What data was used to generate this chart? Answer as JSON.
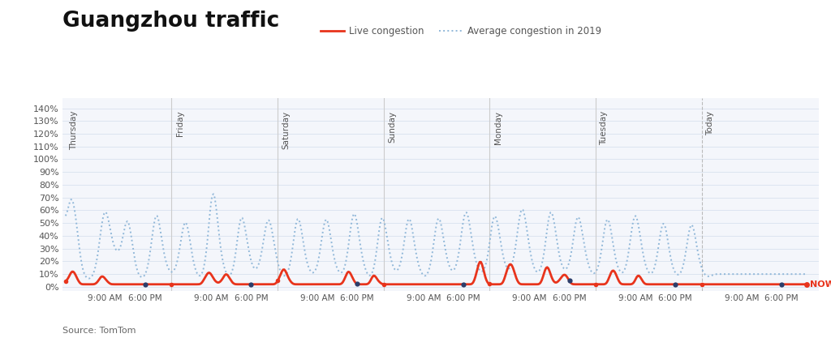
{
  "title": "Guangzhou traffic",
  "legend_live": "Live congestion",
  "legend_avg": "Average congestion in 2019",
  "source": "Source: TomTom",
  "now_label": "NOW",
  "days": [
    "Thursday",
    "Friday",
    "Saturday",
    "Sunday",
    "Monday",
    "Tuesday",
    "Today"
  ],
  "yticks": [
    0,
    10,
    20,
    30,
    40,
    50,
    60,
    70,
    80,
    90,
    100,
    110,
    120,
    130,
    140
  ],
  "ylim": [
    -3,
    148
  ],
  "bg_color": "#ffffff",
  "plot_bg_color": "#f4f6fb",
  "grid_color": "#dce4f0",
  "live_color": "#e8341c",
  "avg_color": "#91b8d9",
  "day_label_color": "#555555",
  "title_color": "#111111",
  "n_points_per_day": 96,
  "n_days": 7,
  "avg_data": [
    53,
    57,
    62,
    68,
    72,
    70,
    65,
    58,
    48,
    38,
    28,
    20,
    14,
    10,
    8,
    7,
    6,
    6,
    7,
    8,
    10,
    14,
    18,
    25,
    34,
    43,
    52,
    58,
    62,
    60,
    56,
    50,
    44,
    38,
    33,
    30,
    28,
    27,
    28,
    30,
    34,
    40,
    47,
    52,
    55,
    52,
    46,
    38,
    30,
    22,
    16,
    12,
    9,
    8,
    7,
    7,
    8,
    10,
    13,
    18,
    25,
    34,
    43,
    52,
    58,
    60,
    55,
    48,
    40,
    32,
    26,
    21,
    17,
    14,
    12,
    11,
    11,
    12,
    14,
    17,
    22,
    28,
    36,
    44,
    50,
    54,
    52,
    47,
    40,
    32,
    25,
    19,
    14,
    11,
    9,
    8,
    8,
    9,
    12,
    18,
    25,
    35,
    50,
    65,
    75,
    78,
    74,
    65,
    53,
    42,
    32,
    24,
    18,
    14,
    11,
    9,
    8,
    8,
    10,
    13,
    18,
    26,
    35,
    46,
    54,
    58,
    56,
    51,
    44,
    37,
    30,
    24,
    19,
    16,
    14,
    13,
    14,
    16,
    19,
    24,
    30,
    38,
    46,
    52,
    55,
    54,
    50,
    43,
    36,
    29,
    23,
    18,
    14,
    11,
    9,
    8,
    8,
    9,
    11,
    14,
    19,
    26,
    35,
    45,
    53,
    57,
    55,
    50,
    43,
    35,
    28,
    22,
    17,
    14,
    12,
    11,
    10,
    11,
    13,
    16,
    21,
    28,
    36,
    45,
    52,
    56,
    55,
    50,
    43,
    35,
    28,
    22,
    17,
    14,
    12,
    11,
    10,
    11,
    13,
    17,
    22,
    30,
    40,
    50,
    57,
    61,
    59,
    53,
    45,
    37,
    29,
    23,
    18,
    14,
    11,
    9,
    8,
    8,
    10,
    13,
    18,
    26,
    36,
    46,
    54,
    58,
    56,
    50,
    43,
    36,
    29,
    23,
    18,
    15,
    13,
    12,
    12,
    14,
    17,
    22,
    28,
    37,
    46,
    53,
    57,
    55,
    49,
    42,
    34,
    27,
    21,
    17,
    13,
    11,
    9,
    8,
    8,
    9,
    11,
    15,
    20,
    27,
    36,
    46,
    53,
    57,
    56,
    50,
    43,
    36,
    29,
    23,
    18,
    15,
    13,
    12,
    12,
    14,
    17,
    22,
    28,
    37,
    47,
    55,
    60,
    62,
    58,
    51,
    44,
    36,
    29,
    23,
    18,
    15,
    13,
    12,
    11,
    12,
    14,
    17,
    22,
    30,
    39,
    49,
    55,
    59,
    57,
    52,
    45,
    37,
    30,
    24,
    19,
    16,
    14,
    13,
    14,
    16,
    19,
    24,
    31,
    40,
    50,
    58,
    63,
    64,
    60,
    53,
    45,
    37,
    29,
    23,
    18,
    15,
    12,
    11,
    11,
    12,
    14,
    18,
    24,
    32,
    42,
    52,
    59,
    62,
    60,
    54,
    47,
    39,
    31,
    24,
    19,
    16,
    14,
    13,
    13,
    15,
    18,
    22,
    29,
    37,
    46,
    54,
    58,
    57,
    52,
    45,
    38,
    31,
    25,
    20,
    16,
    13,
    11,
    10,
    10,
    11,
    13,
    16,
    21,
    28,
    36,
    45,
    52,
    56,
    55,
    50,
    43,
    35,
    28,
    22,
    17,
    14,
    12,
    11,
    10,
    11,
    14,
    18,
    24,
    32,
    41,
    50,
    56,
    59,
    57,
    51,
    44,
    36,
    29,
    23,
    18,
    14,
    12,
    10,
    10,
    10,
    12,
    15,
    20,
    27,
    35,
    43,
    50,
    53,
    51,
    45,
    38,
    30,
    23,
    18,
    14,
    11,
    10,
    9,
    9,
    10,
    12,
    15,
    20,
    27,
    35,
    43,
    49,
    52,
    50,
    44,
    37,
    30,
    24,
    19,
    15,
    12,
    10,
    9,
    8,
    8,
    8,
    9,
    9,
    10,
    10,
    10,
    10,
    10,
    10,
    10,
    10,
    10,
    10,
    10,
    10,
    10,
    10,
    10,
    10,
    10,
    10,
    10,
    10,
    10,
    10,
    10,
    10,
    10,
    10,
    10,
    10,
    10,
    10,
    10,
    10,
    10,
    10,
    10,
    10,
    10,
    10,
    10,
    10,
    10,
    10,
    10,
    10,
    10,
    10,
    10,
    10,
    10,
    10,
    10,
    10,
    10,
    10,
    10,
    10,
    10,
    10,
    10,
    10,
    10,
    10,
    10,
    10,
    10,
    10,
    10
  ],
  "live_data": [
    4,
    5,
    7,
    9,
    12,
    13,
    12,
    10,
    7,
    5,
    3,
    2,
    2,
    2,
    2,
    2,
    2,
    2,
    2,
    2,
    2,
    2,
    3,
    4,
    6,
    8,
    9,
    8,
    7,
    5,
    4,
    3,
    2,
    2,
    2,
    2,
    2,
    2,
    2,
    2,
    2,
    2,
    2,
    2,
    2,
    2,
    2,
    2,
    2,
    2,
    2,
    2,
    2,
    2,
    2,
    2,
    2,
    2,
    2,
    2,
    2,
    2,
    2,
    2,
    2,
    2,
    2,
    2,
    2,
    2,
    2,
    2,
    2,
    2,
    2,
    2,
    2,
    2,
    2,
    2,
    2,
    2,
    2,
    2,
    2,
    2,
    2,
    2,
    2,
    2,
    2,
    2,
    2,
    2,
    2,
    2,
    2,
    3,
    5,
    7,
    9,
    11,
    12,
    11,
    9,
    7,
    5,
    4,
    3,
    3,
    4,
    5,
    7,
    9,
    11,
    10,
    8,
    6,
    4,
    3,
    2,
    2,
    2,
    2,
    2,
    2,
    2,
    2,
    2,
    2,
    2,
    2,
    2,
    2,
    2,
    2,
    2,
    2,
    2,
    2,
    2,
    2,
    2,
    2,
    2,
    2,
    2,
    2,
    2,
    2,
    3,
    5,
    7,
    10,
    13,
    15,
    14,
    11,
    8,
    6,
    4,
    3,
    2,
    2,
    2,
    2,
    2,
    2,
    2,
    2,
    2,
    2,
    2,
    2,
    2,
    2,
    2,
    2,
    2,
    2,
    2,
    2,
    2,
    2,
    2,
    2,
    2,
    2,
    2,
    2,
    2,
    2,
    2,
    2,
    2,
    2,
    2,
    3,
    5,
    8,
    11,
    13,
    12,
    10,
    7,
    5,
    3,
    2,
    2,
    2,
    2,
    2,
    2,
    2,
    2,
    2,
    3,
    5,
    8,
    10,
    9,
    7,
    5,
    4,
    3,
    2,
    2,
    2,
    2,
    2,
    2,
    2,
    2,
    2,
    2,
    2,
    2,
    2,
    2,
    2,
    2,
    2,
    2,
    2,
    2,
    2,
    2,
    2,
    2,
    2,
    2,
    2,
    2,
    2,
    2,
    2,
    2,
    2,
    2,
    2,
    2,
    2,
    2,
    2,
    2,
    2,
    2,
    2,
    2,
    2,
    2,
    2,
    2,
    2,
    2,
    2,
    2,
    2,
    2,
    2,
    2,
    2,
    2,
    2,
    2,
    2,
    2,
    2,
    2,
    2,
    3,
    6,
    10,
    15,
    20,
    22,
    19,
    14,
    9,
    5,
    3,
    2,
    2,
    2,
    2,
    2,
    2,
    2,
    2,
    2,
    2,
    3,
    6,
    10,
    14,
    17,
    19,
    18,
    16,
    12,
    8,
    5,
    3,
    2,
    2,
    2,
    2,
    2,
    2,
    2,
    2,
    2,
    2,
    2,
    2,
    2,
    2,
    2,
    3,
    6,
    10,
    14,
    17,
    16,
    13,
    9,
    6,
    4,
    3,
    3,
    4,
    5,
    7,
    8,
    10,
    10,
    9,
    7,
    5,
    3,
    2,
    2,
    2,
    2,
    2,
    2,
    2,
    2,
    2,
    2,
    2,
    2,
    2,
    2,
    2,
    2,
    2,
    2,
    2,
    2,
    2,
    2,
    2,
    2,
    2,
    3,
    6,
    9,
    12,
    14,
    13,
    11,
    8,
    5,
    3,
    2,
    2,
    2,
    2,
    2,
    2,
    2,
    2,
    2,
    3,
    5,
    8,
    10,
    9,
    7,
    5,
    3,
    2,
    2,
    2,
    2,
    2,
    2,
    2,
    2,
    2,
    2,
    2,
    2,
    2,
    2,
    2,
    2,
    2,
    2,
    2,
    2,
    2,
    2,
    2,
    2,
    2,
    2,
    2,
    2,
    2,
    2,
    2,
    2,
    2,
    2,
    2,
    2,
    2,
    2,
    2,
    2,
    2,
    2,
    2,
    2,
    2,
    2,
    2,
    2,
    2,
    2,
    2,
    2,
    2,
    2,
    2,
    2,
    2,
    2,
    2,
    2,
    2,
    2,
    2,
    2,
    2,
    2,
    2,
    2,
    2,
    2,
    2,
    2,
    2,
    2,
    2,
    2,
    2,
    2,
    2,
    2,
    2,
    2,
    2,
    2,
    2,
    2,
    2,
    2,
    2,
    2,
    2,
    2,
    2,
    2,
    2,
    2,
    2,
    2,
    2,
    2,
    2,
    2,
    2,
    2,
    2,
    2,
    2,
    2,
    2,
    2,
    2,
    2,
    2,
    2,
    2,
    2
  ]
}
